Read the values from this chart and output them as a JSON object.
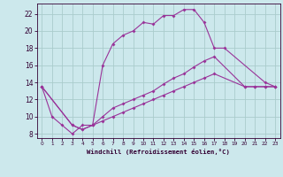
{
  "xlabel": "Windchill (Refroidissement éolien,°C)",
  "bg_color": "#cce8ec",
  "grid_color": "#aacccc",
  "line_color": "#993399",
  "xlim": [
    -0.5,
    23.5
  ],
  "ylim": [
    7.5,
    23.2
  ],
  "xticks": [
    0,
    1,
    2,
    3,
    4,
    5,
    6,
    7,
    8,
    9,
    10,
    11,
    12,
    13,
    14,
    15,
    16,
    17,
    18,
    19,
    20,
    21,
    22,
    23
  ],
  "yticks": [
    8,
    10,
    12,
    14,
    16,
    18,
    20,
    22
  ],
  "line1_x": [
    0,
    1,
    2,
    3,
    4,
    5,
    6,
    7,
    8,
    9,
    10,
    11,
    12,
    13,
    14,
    15,
    16,
    17,
    18,
    22,
    23
  ],
  "line1_y": [
    13.5,
    10.0,
    9.0,
    8.0,
    9.0,
    9.0,
    16.0,
    18.5,
    19.5,
    20.0,
    21.0,
    20.8,
    21.8,
    21.8,
    22.5,
    22.5,
    21.0,
    18.0,
    18.0,
    14.0,
    13.5
  ],
  "line2_x": [
    0,
    3,
    4,
    5,
    6,
    7,
    8,
    9,
    10,
    11,
    12,
    13,
    14,
    15,
    16,
    17,
    20,
    21,
    22,
    23
  ],
  "line2_y": [
    13.5,
    9.0,
    8.5,
    9.0,
    10.0,
    11.0,
    11.5,
    12.0,
    12.5,
    13.0,
    13.8,
    14.5,
    15.0,
    15.8,
    16.5,
    17.0,
    13.5,
    13.5,
    13.5,
    13.5
  ],
  "line3_x": [
    0,
    3,
    4,
    5,
    6,
    7,
    8,
    9,
    10,
    11,
    12,
    13,
    14,
    15,
    16,
    17,
    20,
    21,
    22,
    23
  ],
  "line3_y": [
    13.5,
    9.0,
    8.5,
    9.0,
    9.5,
    10.0,
    10.5,
    11.0,
    11.5,
    12.0,
    12.5,
    13.0,
    13.5,
    14.0,
    14.5,
    15.0,
    13.5,
    13.5,
    13.5,
    13.5
  ]
}
